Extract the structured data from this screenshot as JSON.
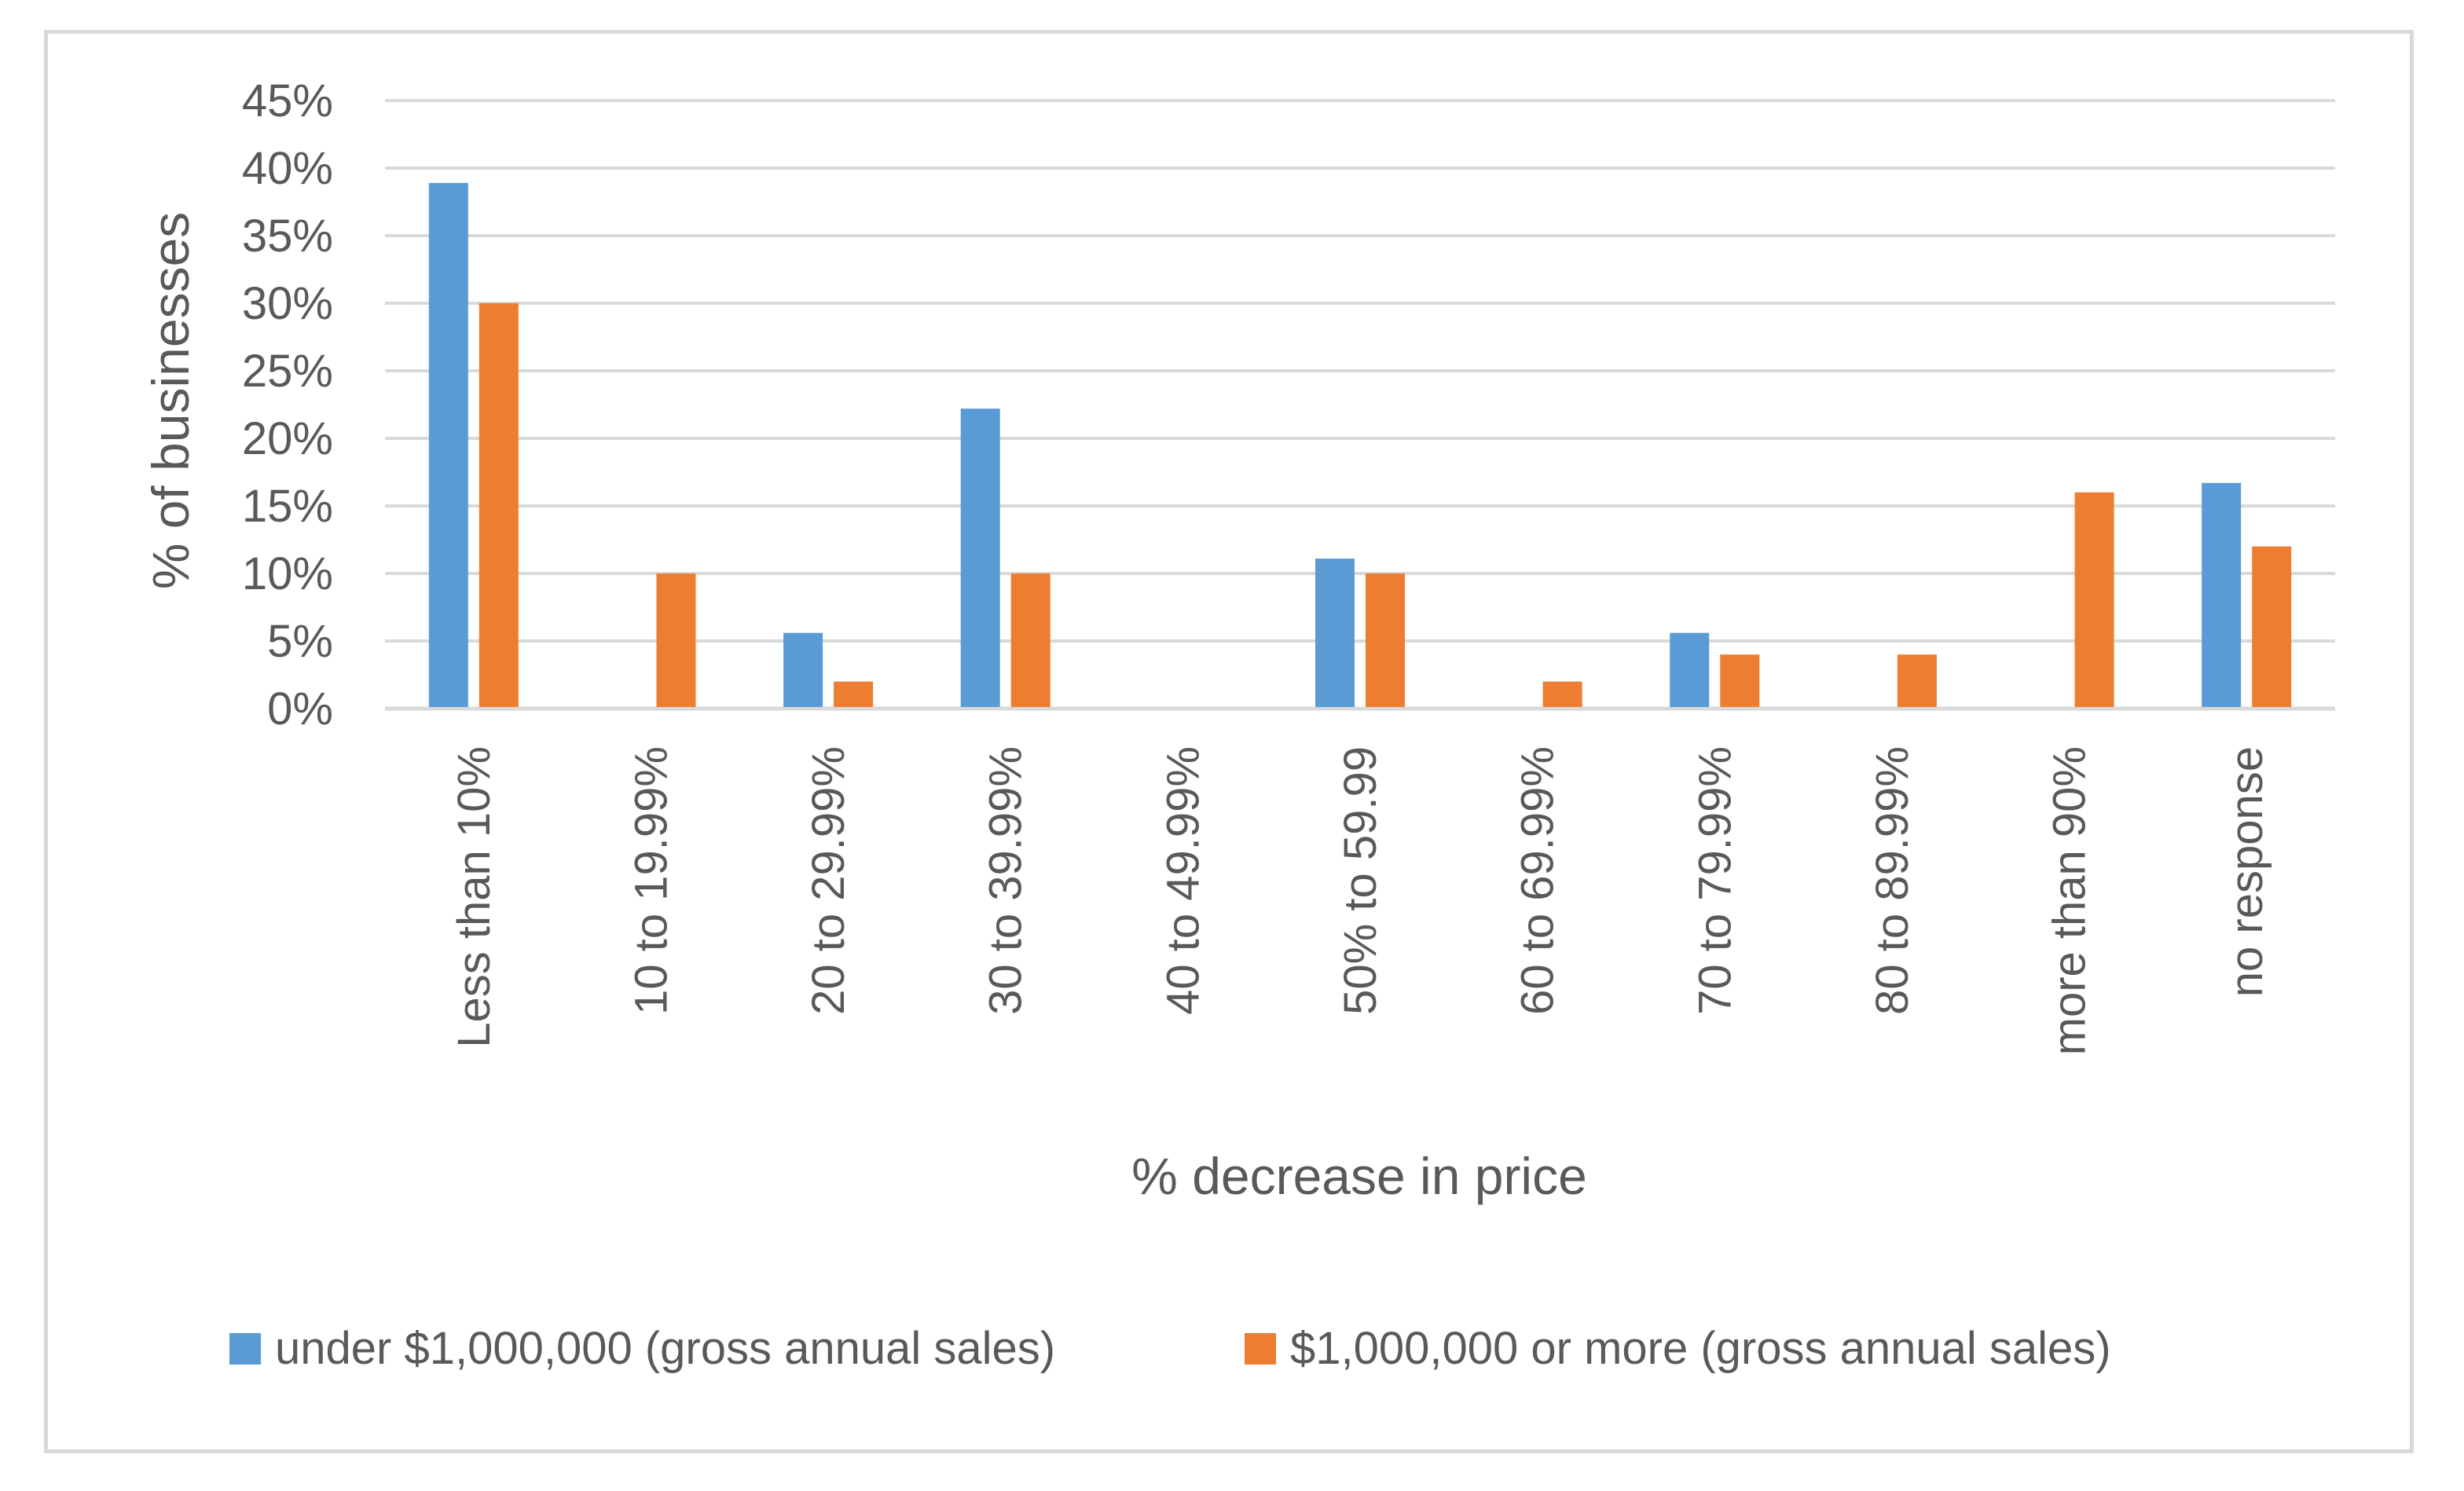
{
  "chart_data": {
    "type": "bar",
    "title": "",
    "xlabel": "% decrease in price",
    "ylabel": "% of businesses",
    "ylim": [
      0,
      45
    ],
    "y_ticks": [
      0,
      5,
      10,
      15,
      20,
      25,
      30,
      35,
      40,
      45
    ],
    "y_tick_labels": [
      "0%",
      "5%",
      "10%",
      "15%",
      "20%",
      "25%",
      "30%",
      "35%",
      "40%",
      "45%"
    ],
    "grid": true,
    "legend_position": "bottom",
    "categories": [
      "Less than 10%",
      "10 to 19.99%",
      "20 to 29.99%",
      "30 to 39.99%",
      "40 to 49.99%",
      "50% to 59.99",
      "60 to 69.99%",
      "70 to 79.99%",
      "80 to 89.99%",
      "more than 90%",
      "no response"
    ],
    "series": [
      {
        "name": "under $1,000,000 (gross annual sales)",
        "color": "#5b9bd5",
        "values": [
          38.9,
          0,
          5.6,
          22.2,
          0,
          11.1,
          0,
          5.6,
          0,
          0,
          16.7
        ]
      },
      {
        "name": "$1,000,000 or more (gross annual sales)",
        "color": "#ed7d31",
        "values": [
          30,
          10,
          2,
          10,
          0,
          10,
          2,
          4,
          4,
          16,
          12
        ]
      }
    ],
    "gridline_color": "#d9d9d9",
    "axis_color": "#d9d9d9",
    "text_color": "#595959"
  }
}
